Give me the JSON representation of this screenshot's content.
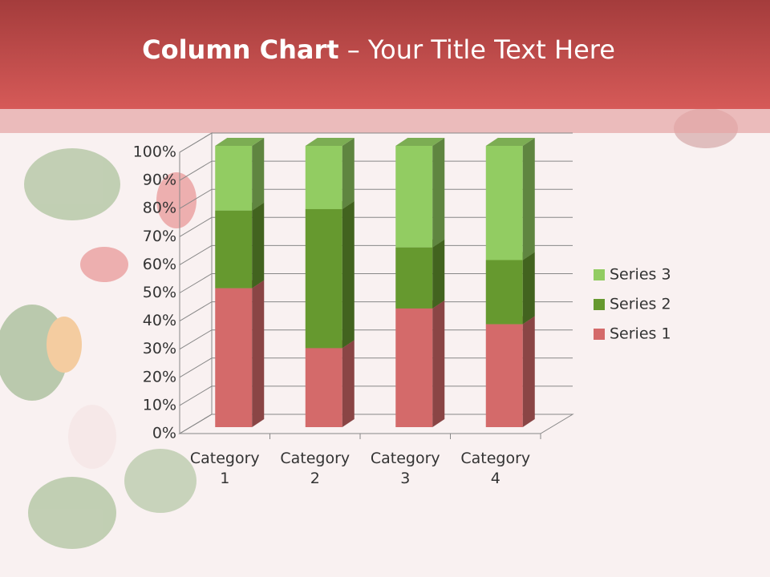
{
  "chart_data": {
    "type": "stacked-bar-3d",
    "title_bold": "Column Chart",
    "title": "– Your Title Text Here",
    "categories": [
      "Category 1",
      "Category 2",
      "Category 3",
      "Category 4"
    ],
    "series": [
      {
        "name": "Series 1",
        "color": "#d46a6a",
        "values": [
          49.4,
          28.1,
          42.2,
          36.6
        ]
      },
      {
        "name": "Series 2",
        "color": "#66992f",
        "values": [
          27.6,
          49.4,
          21.7,
          22.8
        ]
      },
      {
        "name": "Series 3",
        "color": "#92cc62",
        "values": [
          23.0,
          22.5,
          36.1,
          40.6
        ]
      }
    ],
    "ylim": [
      0,
      100
    ],
    "yticks": [
      {
        "value": 0,
        "label": "0%"
      },
      {
        "value": 10,
        "label": "10%"
      },
      {
        "value": 20,
        "label": "20%"
      },
      {
        "value": 30,
        "label": "30%"
      },
      {
        "value": 40,
        "label": "40%"
      },
      {
        "value": 50,
        "label": "50%"
      },
      {
        "value": 60,
        "label": "60%"
      },
      {
        "value": 70,
        "label": "70%"
      },
      {
        "value": 80,
        "label": "80%"
      },
      {
        "value": 90,
        "label": "90%"
      },
      {
        "value": 100,
        "label": "100%"
      }
    ],
    "grid": true,
    "legend": "right"
  }
}
